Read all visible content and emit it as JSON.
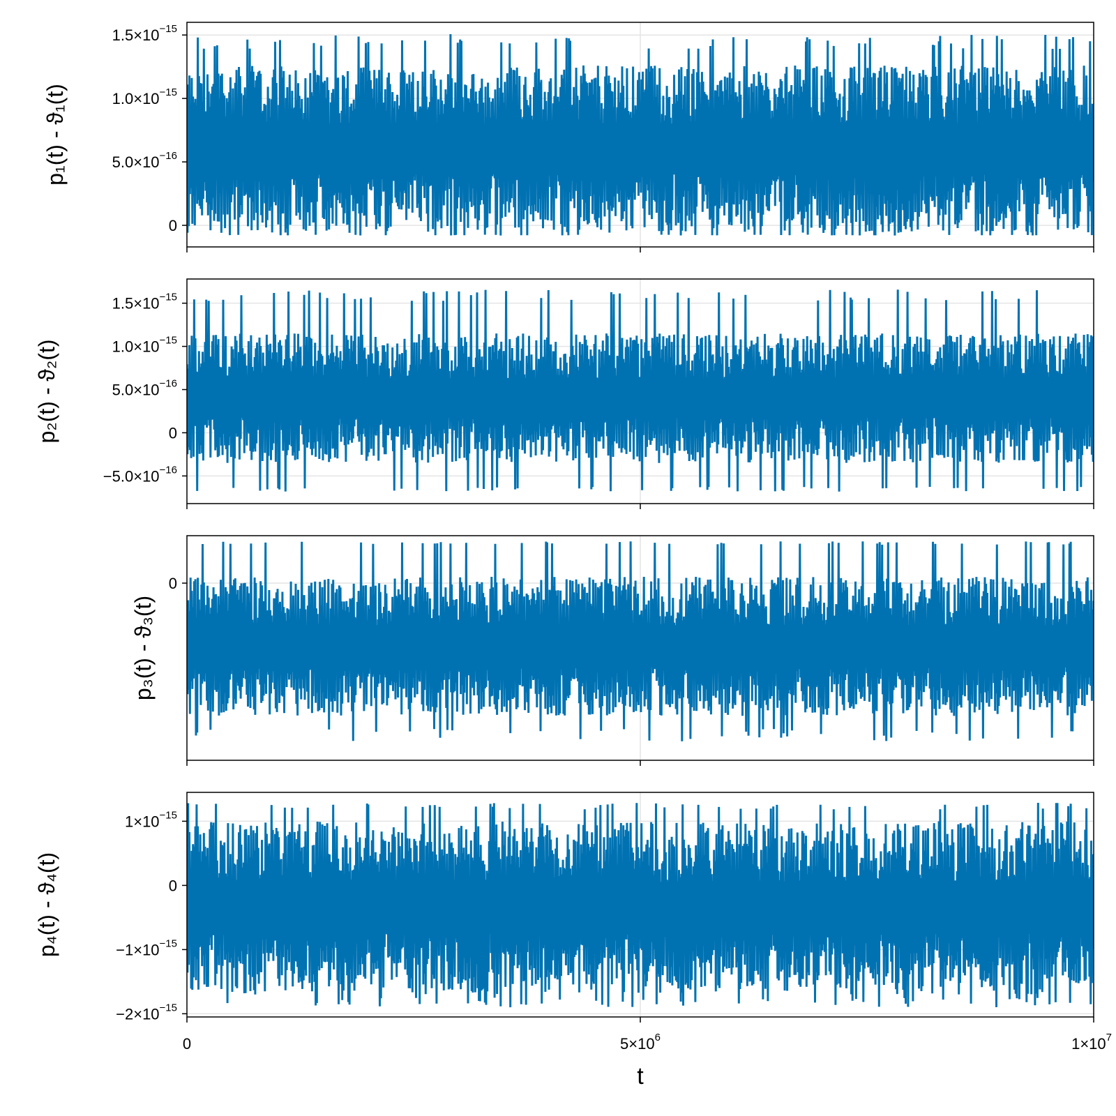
{
  "chart_data": [
    {
      "type": "line",
      "ylabel": "p₁(t) - ϑ₁(t)",
      "series_color": "#0072b2",
      "grid": true,
      "xlim": [
        0,
        10000000
      ],
      "ylim": [
        -1.7e-16,
        1.6e-15
      ],
      "yticks": [
        {
          "value": 0,
          "mantissa": "0",
          "exp": ""
        },
        {
          "value": 5e-16,
          "mantissa": "5.0×10",
          "exp": "−16"
        },
        {
          "value": 1e-15,
          "mantissa": "1.0×10",
          "exp": "−15"
        },
        {
          "value": 1.5e-15,
          "mantissa": "1.5×10",
          "exp": "−15"
        }
      ],
      "signal": {
        "center": 6e-16,
        "amplitude": 6.6e-16,
        "spike_low": -8e-17,
        "spike_high": 1.51e-15,
        "floor": -6e-17
      }
    },
    {
      "type": "line",
      "ylabel": "p₂(t) - ϑ₂(t)",
      "series_color": "#0072b2",
      "grid": true,
      "xlim": [
        0,
        10000000
      ],
      "ylim": [
        -8.2e-16,
        1.78e-15
      ],
      "yticks": [
        {
          "value": -5e-16,
          "mantissa": "−5.0×10",
          "exp": "−16"
        },
        {
          "value": 0,
          "mantissa": "0",
          "exp": ""
        },
        {
          "value": 5e-16,
          "mantissa": "5.0×10",
          "exp": "−16"
        },
        {
          "value": 1e-15,
          "mantissa": "1.0×10",
          "exp": "−15"
        },
        {
          "value": 1.5e-15,
          "mantissa": "1.5×10",
          "exp": "−15"
        }
      ],
      "signal": {
        "center": 4e-16,
        "amplitude": 7.5e-16,
        "spike_low": -6.8e-16,
        "spike_high": 1.66e-15,
        "floor": -4e-16
      }
    },
    {
      "type": "line",
      "ylabel": "p₃(t) - ϑ₃(t)",
      "series_color": "#0072b2",
      "grid": true,
      "xlim": [
        0,
        10000000
      ],
      "ylim": [
        -2.8e-15,
        7.5e-16
      ],
      "yticks": [
        {
          "value": 0,
          "mantissa": "0",
          "exp": ""
        }
      ],
      "signal": {
        "center": -1e-15,
        "amplitude": 1.1e-15,
        "spike_low": -2.5e-15,
        "spike_high": 6.6e-16,
        "floor": -2.3e-15
      }
    },
    {
      "type": "line",
      "ylabel": "p₄(t) - ϑ₄(t)",
      "xlabel": "t",
      "series_color": "#0072b2",
      "grid": true,
      "xlim": [
        0,
        10000000
      ],
      "ylim": [
        -2.05e-15,
        1.45e-15
      ],
      "yticks": [
        {
          "value": -2e-15,
          "mantissa": "−2×10",
          "exp": "−15"
        },
        {
          "value": -1e-15,
          "mantissa": "−1×10",
          "exp": "−15"
        },
        {
          "value": 0,
          "mantissa": "0",
          "exp": ""
        },
        {
          "value": 1e-15,
          "mantissa": "1×10",
          "exp": "−15"
        }
      ],
      "xticks": [
        {
          "value": 0,
          "mantissa": "0",
          "exp": ""
        },
        {
          "value": 5000000,
          "mantissa": "5×10",
          "exp": "6"
        },
        {
          "value": 10000000,
          "mantissa": "1×10",
          "exp": "7"
        }
      ],
      "signal": {
        "center": -3.5e-16,
        "amplitude": 1.35e-15,
        "spike_low": -1.9e-15,
        "spike_high": 1.29e-15,
        "floor": -1.7e-15
      }
    }
  ]
}
